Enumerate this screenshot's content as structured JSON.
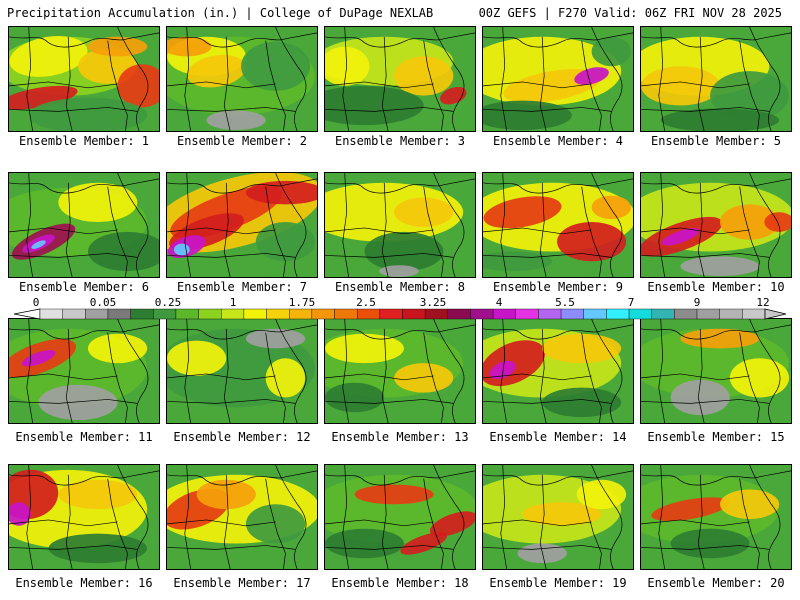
{
  "header": {
    "title_left": "Precipitation Accumulation (in.) | College of DuPage NEXLAB",
    "title_right": "00Z GEFS | F270 Valid: 06Z FRI NOV 28 2025"
  },
  "panels": [
    {
      "label": "Ensemble Member: 1"
    },
    {
      "label": "Ensemble Member: 2"
    },
    {
      "label": "Ensemble Member: 3"
    },
    {
      "label": "Ensemble Member: 4"
    },
    {
      "label": "Ensemble Member: 5"
    },
    {
      "label": "Ensemble Member: 6"
    },
    {
      "label": "Ensemble Member: 7"
    },
    {
      "label": "Ensemble Member: 8"
    },
    {
      "label": "Ensemble Member: 9"
    },
    {
      "label": "Ensemble Member: 10"
    },
    {
      "label": "Ensemble Member: 11"
    },
    {
      "label": "Ensemble Member: 12"
    },
    {
      "label": "Ensemble Member: 13"
    },
    {
      "label": "Ensemble Member: 14"
    },
    {
      "label": "Ensemble Member: 15"
    },
    {
      "label": "Ensemble Member: 16"
    },
    {
      "label": "Ensemble Member: 17"
    },
    {
      "label": "Ensemble Member: 18"
    },
    {
      "label": "Ensemble Member: 19"
    },
    {
      "label": "Ensemble Member: 20"
    }
  ],
  "colorbar": {
    "tick_labels": [
      "0",
      "0.05",
      "0.25",
      "1",
      "1.75",
      "2.5",
      "3.25",
      "4",
      "5.5",
      "7",
      "9",
      "12"
    ],
    "colors": [
      "#e0e0e0",
      "#c8c8c8",
      "#a0a0a0",
      "#7a7a7a",
      "#2e7d32",
      "#3f9a3f",
      "#5cb82a",
      "#8cd21e",
      "#c6e61a",
      "#f2f20a",
      "#f5d20a",
      "#f5b40a",
      "#f5960a",
      "#f0780a",
      "#ea500a",
      "#e02020",
      "#c8141e",
      "#a0101e",
      "#8c0a50",
      "#a0108c",
      "#c814c8",
      "#e632e6",
      "#b464f0",
      "#8c8cff",
      "#64c8ff",
      "#32f0ff",
      "#14dcdc",
      "#32b4b4",
      "#8c8c8c",
      "#a0a0a0",
      "#b4b4b4",
      "#c8c8c8"
    ]
  }
}
